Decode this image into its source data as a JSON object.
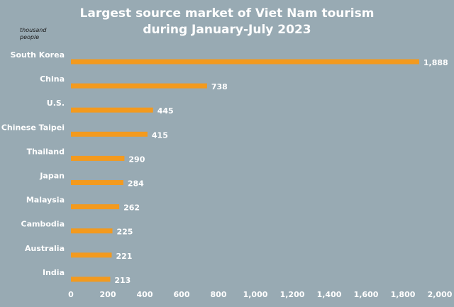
{
  "chart_data": {
    "type": "bar",
    "orientation": "horizontal",
    "title": [
      "Largest source market of Viet Nam tourism",
      "during January-July 2023"
    ],
    "unit": "thousand people",
    "categories": [
      "South Korea",
      "China",
      "U.S.",
      "Chinese Taipei",
      "Thailand",
      "Japan",
      "Malaysia",
      "Cambodia",
      "Australia",
      "India"
    ],
    "values": [
      1888,
      738,
      445,
      415,
      290,
      284,
      262,
      225,
      221,
      213
    ],
    "value_labels": [
      "1,888",
      "738",
      "445",
      "415",
      "290",
      "284",
      "262",
      "225",
      "221",
      "213"
    ],
    "color": "#f39a1e",
    "xlim": [
      0,
      2000
    ],
    "xticks": [
      0,
      200,
      400,
      600,
      800,
      {
        "value": 1000,
        "label": "1,000"
      },
      {
        "value": 1200,
        "label": "1,200"
      },
      {
        "value": 1400,
        "label": "1,400"
      },
      {
        "value": 1600,
        "label": "1,600"
      },
      {
        "value": 1800,
        "label": "1,800"
      },
      {
        "value": 2000,
        "label": "2,000"
      }
    ],
    "grid": false
  }
}
